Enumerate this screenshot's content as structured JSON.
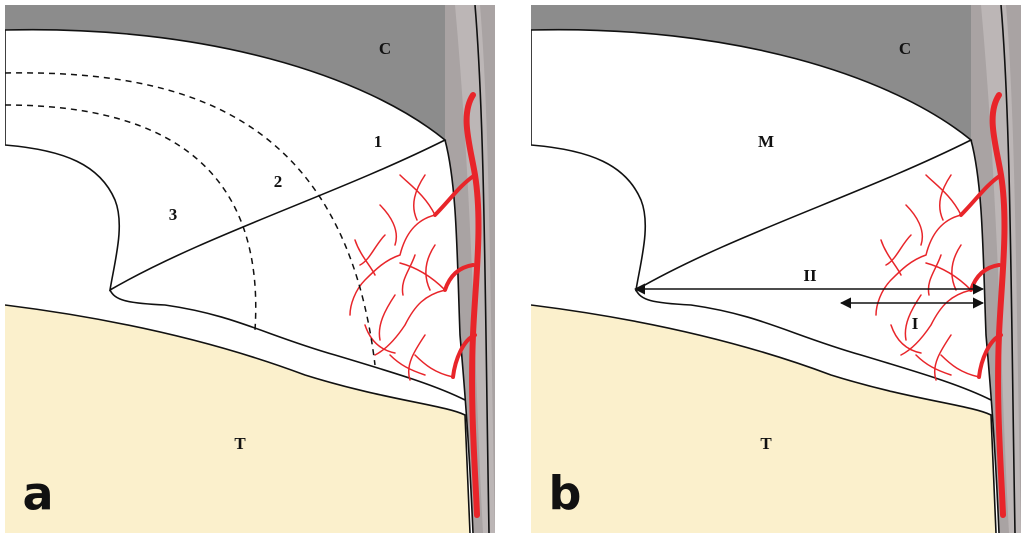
{
  "panels": [
    {
      "label": "a",
      "regions": [
        "C",
        "1",
        "2",
        "3",
        "T"
      ]
    },
    {
      "label": "b",
      "regions": [
        "C",
        "M",
        "II",
        "I",
        "T"
      ]
    }
  ]
}
